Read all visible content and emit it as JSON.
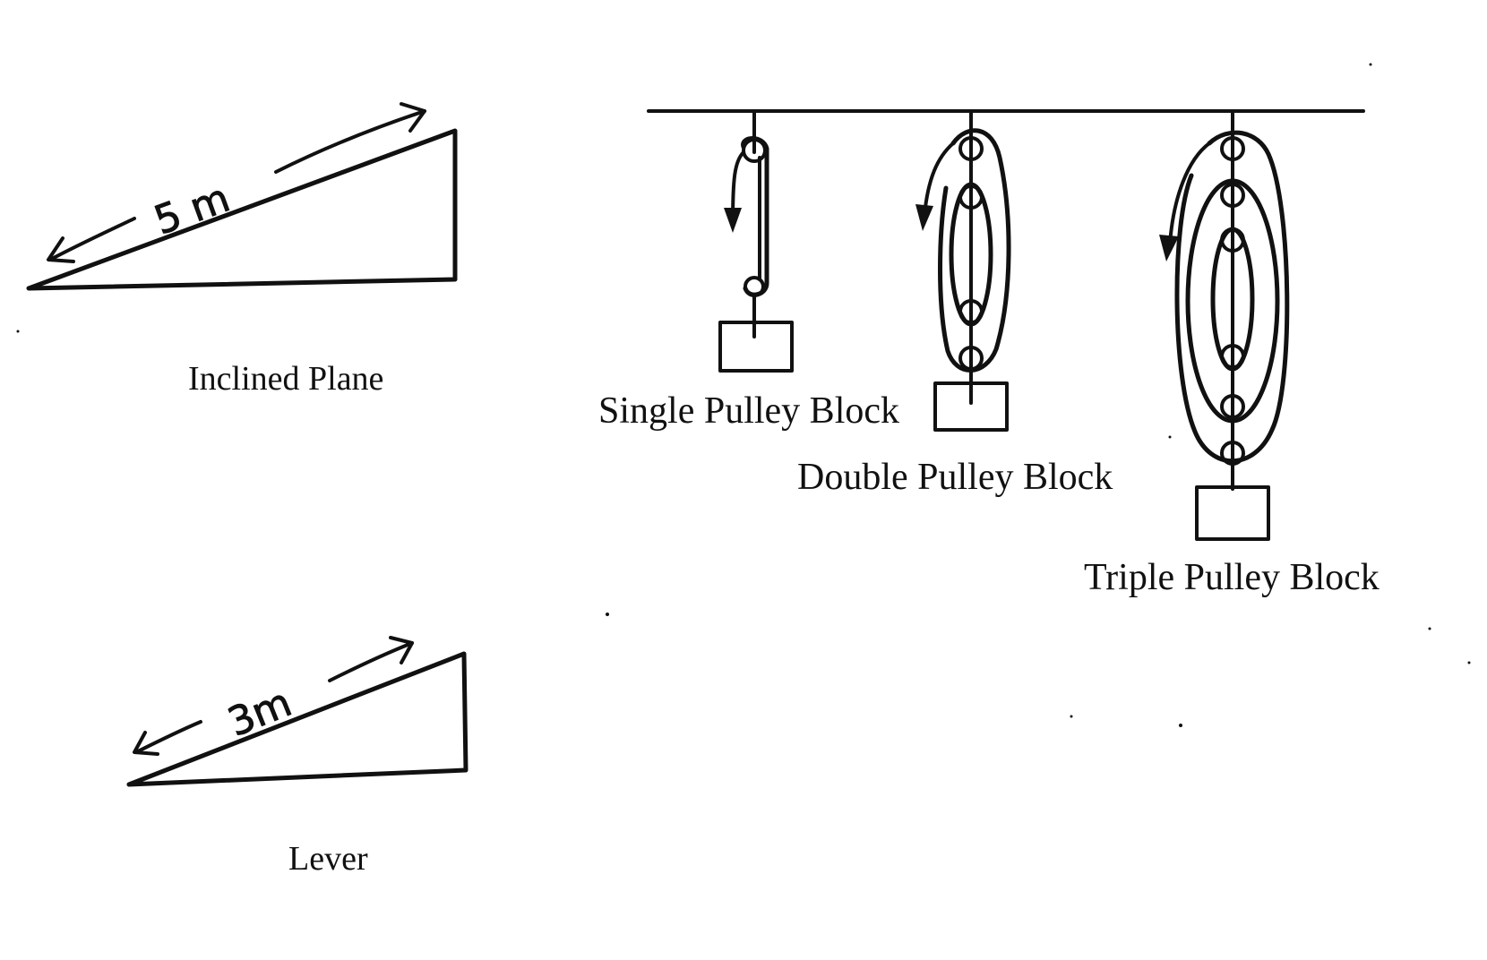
{
  "figures": {
    "inclined_plane": {
      "caption": "Inclined Plane",
      "length_label": "5 m"
    },
    "lever": {
      "caption": "Lever",
      "length_label": "3m"
    },
    "single_pulley": {
      "caption": "Single Pulley Block"
    },
    "double_pulley": {
      "caption": "Double Pulley Block"
    },
    "triple_pulley": {
      "caption": "Triple Pulley Block"
    }
  },
  "colors": {
    "ink": "#111111",
    "background": "#ffffff"
  }
}
